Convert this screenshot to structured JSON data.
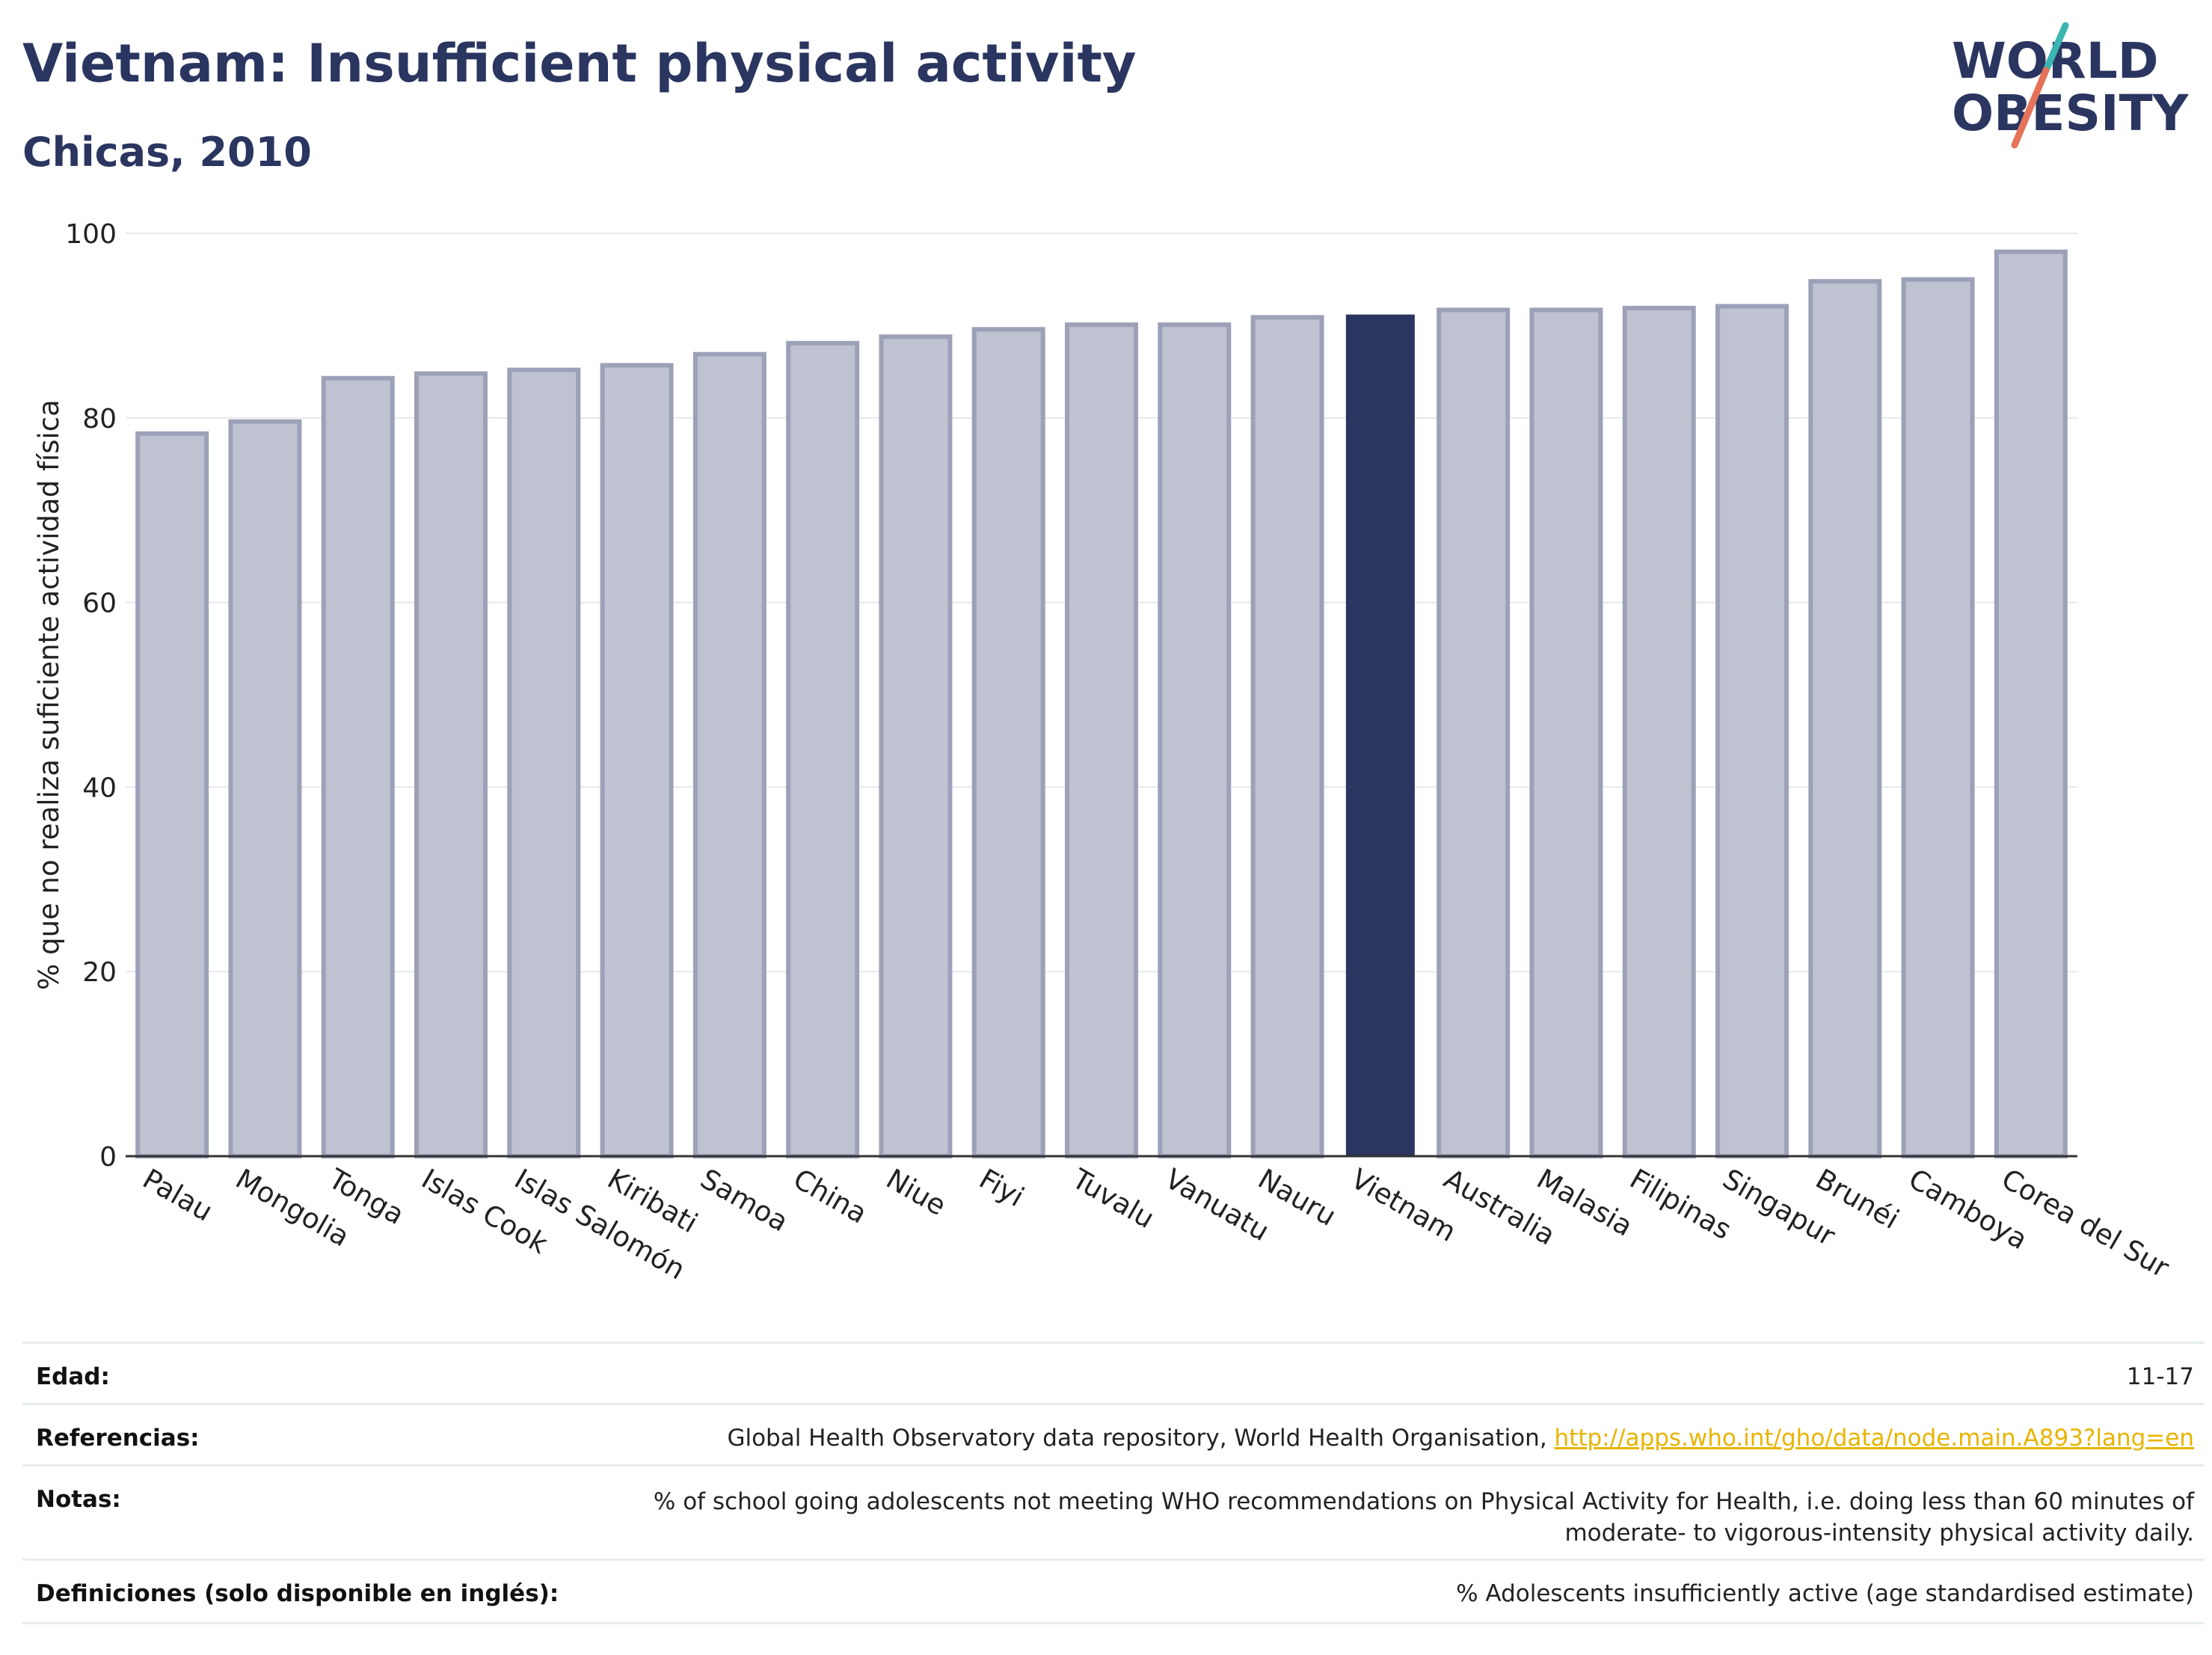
{
  "header": {
    "title": "Vietnam: Insufficient physical activity",
    "subtitle": "Chicas, 2010",
    "logo_line1": "WORLD",
    "logo_line2": "OBESITY"
  },
  "colors": {
    "title": "#2a3560",
    "highlight_bar": "#2a3560",
    "bar_fill": "#bfc2d1",
    "bar_stroke": "#9ca1b8",
    "grid": "#e6e8ee",
    "link": "#e8b400",
    "logo_slash_teal": "#3ab5b0",
    "logo_slash_coral": "#e5735a"
  },
  "chart_data": {
    "type": "bar",
    "title": "Vietnam: Insufficient physical activity",
    "subtitle": "Chicas, 2010",
    "ylabel": "% que no realiza suficiente actividad física",
    "xlabel": "",
    "ylim": [
      0,
      100
    ],
    "yticks": [
      0,
      20,
      40,
      60,
      80,
      100
    ],
    "grid": true,
    "highlight": "Vietnam",
    "categories": [
      "Palau",
      "Mongolia",
      "Tonga",
      "Islas Cook",
      "Islas Salomón",
      "Kiribati",
      "Samoa",
      "China",
      "Niue",
      "Fiyi",
      "Tuvalu",
      "Vanuatu",
      "Nauru",
      "Vietnam",
      "Australia",
      "Malasia",
      "Filipinas",
      "Singapur",
      "Brunéi",
      "Camboya",
      "Corea del Sur"
    ],
    "values": [
      78.3,
      79.6,
      84.3,
      84.8,
      85.2,
      85.7,
      86.9,
      88.1,
      88.8,
      89.6,
      90.1,
      90.1,
      90.9,
      91.2,
      91.7,
      91.7,
      91.9,
      92.1,
      94.8,
      95.0,
      98.0
    ]
  },
  "meta": {
    "rows": [
      {
        "label": "Edad:",
        "value": "11-17"
      },
      {
        "label": "Referencias:",
        "value": "Global Health Observatory data repository, World Health Organisation, ",
        "link": "http://apps.who.int/gho/data/node.main.A893?lang=en"
      },
      {
        "label": "Notas:",
        "value_line1": "% of school going adolescents not meeting WHO recommendations on Physical Activity for Health, i.e. doing less than 60 minutes of",
        "value_line2": "moderate- to vigorous-intensity physical activity daily."
      },
      {
        "label": "Definiciones (solo disponible en inglés):",
        "value": "% Adolescents insufficiently active (age standardised estimate)"
      }
    ]
  }
}
